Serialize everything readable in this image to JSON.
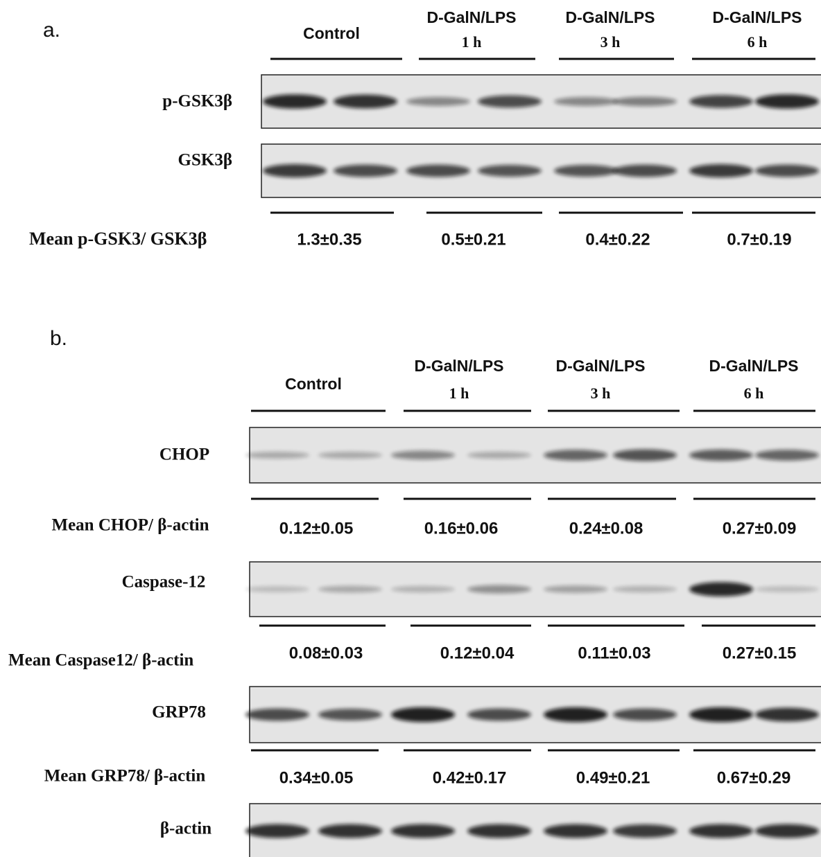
{
  "panel_a": {
    "label": "a.",
    "groups": [
      {
        "title": "Control"
      },
      {
        "title": "D-GalN/LPS",
        "time": "1 h"
      },
      {
        "title": "D-GalN/LPS",
        "time": "3 h"
      },
      {
        "title": "D-GalN/LPS",
        "time": "6 h"
      }
    ],
    "blots": [
      {
        "label": "p-GSK3β"
      },
      {
        "label": "GSK3β"
      }
    ],
    "quantification": {
      "label": "Mean p-GSK3/ GSK3β",
      "values": [
        "1.3±0.35",
        "0.5±0.21",
        "0.4±0.22",
        "0.7±0.19"
      ]
    }
  },
  "panel_b": {
    "label": "b.",
    "groups": [
      {
        "title": "Control"
      },
      {
        "title": "D-GalN/LPS",
        "time": "1 h"
      },
      {
        "title": "D-GalN/LPS",
        "time": "3 h"
      },
      {
        "title": "D-GalN/LPS",
        "time": "6 h"
      }
    ],
    "blots": [
      {
        "label": "CHOP",
        "quantification": {
          "label": "Mean CHOP/ β-actin",
          "values": [
            "0.12±0.05",
            "0.16±0.06",
            "0.24±0.08",
            "0.27±0.09"
          ]
        }
      },
      {
        "label": "Caspase-12",
        "quantification": {
          "label": "Mean Caspase12/ β-actin",
          "values": [
            "0.08±0.03",
            "0.12±0.04",
            "0.11±0.03",
            "0.27±0.15"
          ]
        }
      },
      {
        "label": "GRP78",
        "quantification": {
          "label": "Mean GRP78/ β-actin",
          "values": [
            "0.34±0.05",
            "0.42±0.17",
            "0.49±0.21",
            "0.67±0.29"
          ]
        }
      },
      {
        "label": "β-actin"
      }
    ]
  }
}
